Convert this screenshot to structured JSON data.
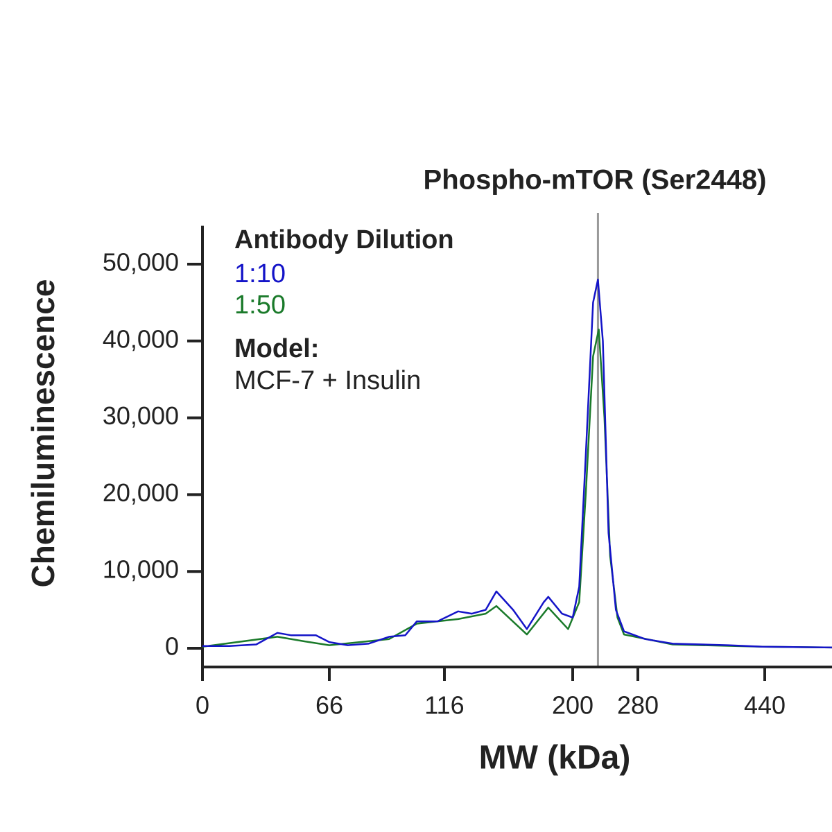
{
  "chart_data": {
    "type": "line",
    "title": "Phospho-mTOR (Ser2448)",
    "xlabel": "MW (kDa)",
    "ylabel": "Chemiluminescence",
    "legend_title": "Antibody Dilution",
    "model_label": "Model:",
    "model": "MCF-7 + Insulin",
    "xlim": [
      0,
      525
    ],
    "xticks": [
      0,
      66,
      116,
      200,
      280,
      440
    ],
    "ylim": [
      -2500,
      55000
    ],
    "yticks": [
      0,
      {
        "value": 10000,
        "label": "10,000"
      },
      {
        "value": 20000,
        "label": "20,000"
      },
      {
        "value": 30000,
        "label": "30,000"
      },
      {
        "value": 40000,
        "label": "40,000"
      },
      {
        "value": 50000,
        "label": "50,000"
      }
    ],
    "marker_x": 231,
    "marker_color": "#999999",
    "series": [
      {
        "name": "1:10",
        "color": "#1414c8",
        "x": [
          0,
          14,
          28,
          39,
          46,
          59,
          66,
          74,
          83,
          92,
          99,
          104,
          113,
          125,
          134,
          143,
          150,
          161,
          170,
          181,
          184,
          193,
          200,
          208,
          216,
          225,
          231,
          237,
          244,
          253,
          263,
          289,
          324,
          394,
          437,
          525
        ],
        "values": [
          300,
          300,
          500,
          2000,
          1700,
          1700,
          800,
          400,
          600,
          1500,
          1700,
          3500,
          3500,
          4800,
          4500,
          5000,
          7400,
          5000,
          2500,
          6000,
          6700,
          4500,
          4000,
          8000,
          25000,
          45000,
          48000,
          40000,
          15000,
          5000,
          2200,
          1200,
          600,
          400,
          200,
          100
        ]
      },
      {
        "name": "1:50",
        "color": "#1a7a2a",
        "x": [
          0,
          39,
          53,
          66,
          92,
          104,
          125,
          143,
          150,
          170,
          184,
          197,
          208,
          216,
          225,
          232,
          239,
          246,
          255,
          263,
          324,
          437,
          525
        ],
        "values": [
          200,
          1500,
          900,
          400,
          1200,
          3200,
          3800,
          4500,
          5500,
          1800,
          5300,
          2500,
          6000,
          20000,
          38000,
          41500,
          30000,
          12000,
          4000,
          1800,
          500,
          200,
          100
        ]
      }
    ]
  }
}
